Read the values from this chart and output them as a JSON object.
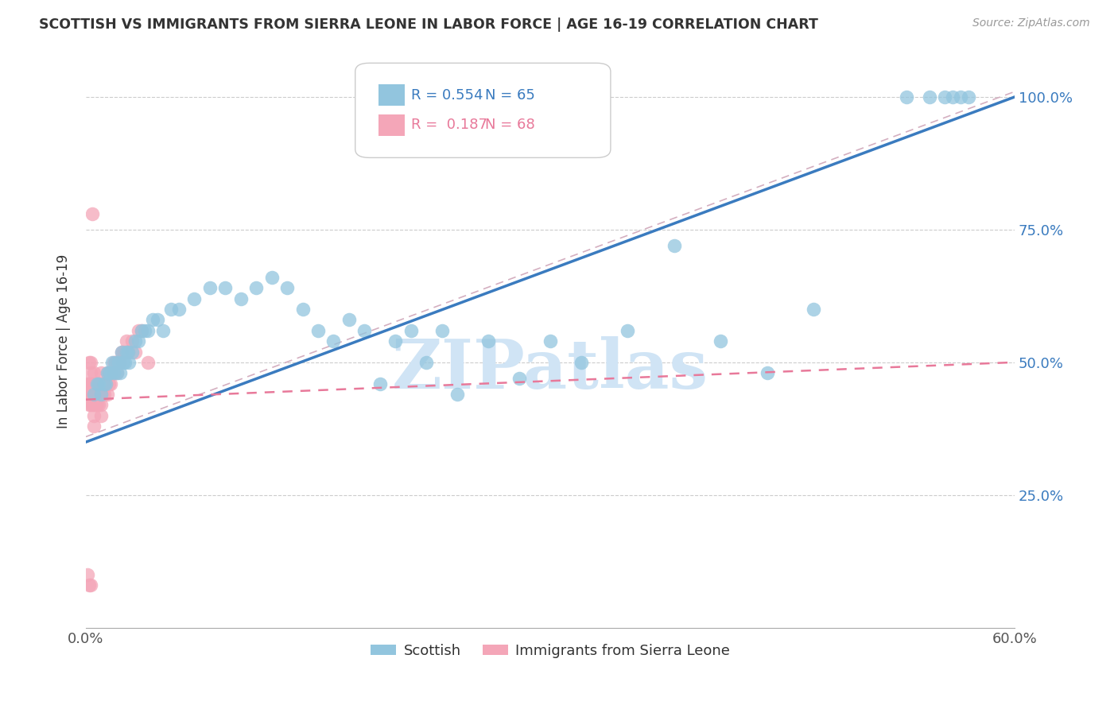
{
  "title": "SCOTTISH VS IMMIGRANTS FROM SIERRA LEONE IN LABOR FORCE | AGE 16-19 CORRELATION CHART",
  "source": "Source: ZipAtlas.com",
  "ylabel": "In Labor Force | Age 16-19",
  "xlim": [
    0.0,
    0.6
  ],
  "ylim": [
    0.0,
    1.08
  ],
  "yticks_right": [
    0.25,
    0.5,
    0.75,
    1.0
  ],
  "ytick_labels_right": [
    "25.0%",
    "50.0%",
    "75.0%",
    "100.0%"
  ],
  "grid_color": "#cccccc",
  "background_color": "#ffffff",
  "scottish_color": "#92c5de",
  "sierra_leone_color": "#f4a6b8",
  "scottish_R": 0.554,
  "scottish_N": 65,
  "sierra_leone_R": 0.187,
  "sierra_leone_N": 68,
  "legend_label_scottish": "Scottish",
  "legend_label_sierra": "Immigrants from Sierra Leone",
  "watermark": "ZIPatlas",
  "watermark_color": "#d0e4f5",
  "blue_line_color": "#3a7bbf",
  "pink_line_color": "#e8799a",
  "ref_line_color": "#d0b8c8",
  "scottish_x": [
    0.005,
    0.007,
    0.008,
    0.01,
    0.012,
    0.013,
    0.014,
    0.015,
    0.016,
    0.017,
    0.018,
    0.019,
    0.02,
    0.021,
    0.022,
    0.023,
    0.024,
    0.025,
    0.026,
    0.027,
    0.028,
    0.03,
    0.032,
    0.034,
    0.036,
    0.038,
    0.04,
    0.043,
    0.046,
    0.05,
    0.055,
    0.06,
    0.07,
    0.08,
    0.09,
    0.1,
    0.11,
    0.12,
    0.13,
    0.14,
    0.15,
    0.16,
    0.17,
    0.18,
    0.19,
    0.2,
    0.21,
    0.22,
    0.23,
    0.24,
    0.26,
    0.28,
    0.3,
    0.32,
    0.35,
    0.38,
    0.41,
    0.44,
    0.47,
    0.53,
    0.545,
    0.555,
    0.56,
    0.565,
    0.57
  ],
  "scottish_y": [
    0.44,
    0.46,
    0.46,
    0.44,
    0.46,
    0.46,
    0.48,
    0.48,
    0.48,
    0.5,
    0.48,
    0.5,
    0.48,
    0.5,
    0.48,
    0.52,
    0.5,
    0.5,
    0.52,
    0.52,
    0.5,
    0.52,
    0.54,
    0.54,
    0.56,
    0.56,
    0.56,
    0.58,
    0.58,
    0.56,
    0.6,
    0.6,
    0.62,
    0.64,
    0.64,
    0.62,
    0.64,
    0.66,
    0.64,
    0.6,
    0.56,
    0.54,
    0.58,
    0.56,
    0.46,
    0.54,
    0.56,
    0.5,
    0.56,
    0.44,
    0.54,
    0.47,
    0.54,
    0.5,
    0.56,
    0.72,
    0.54,
    0.48,
    0.6,
    1.0,
    1.0,
    1.0,
    1.0,
    1.0,
    1.0
  ],
  "sierra_leone_x": [
    0.001,
    0.001,
    0.002,
    0.002,
    0.002,
    0.003,
    0.003,
    0.003,
    0.003,
    0.004,
    0.004,
    0.004,
    0.005,
    0.005,
    0.005,
    0.005,
    0.005,
    0.006,
    0.006,
    0.007,
    0.007,
    0.007,
    0.008,
    0.008,
    0.008,
    0.009,
    0.009,
    0.01,
    0.01,
    0.01,
    0.01,
    0.01,
    0.011,
    0.011,
    0.012,
    0.012,
    0.013,
    0.014,
    0.014,
    0.015,
    0.015,
    0.016,
    0.016,
    0.017,
    0.018,
    0.018,
    0.019,
    0.02,
    0.02,
    0.021,
    0.022,
    0.023,
    0.024,
    0.025,
    0.026,
    0.027,
    0.03,
    0.032,
    0.034,
    0.036,
    0.04,
    0.004,
    0.002,
    0.005,
    0.003,
    0.001,
    0.002,
    0.003
  ],
  "sierra_leone_y": [
    0.44,
    0.46,
    0.42,
    0.44,
    0.46,
    0.42,
    0.44,
    0.46,
    0.48,
    0.42,
    0.44,
    0.46,
    0.38,
    0.4,
    0.42,
    0.44,
    0.46,
    0.42,
    0.44,
    0.42,
    0.44,
    0.46,
    0.42,
    0.44,
    0.46,
    0.44,
    0.46,
    0.4,
    0.42,
    0.44,
    0.46,
    0.48,
    0.44,
    0.46,
    0.44,
    0.46,
    0.46,
    0.44,
    0.48,
    0.46,
    0.48,
    0.46,
    0.48,
    0.48,
    0.48,
    0.5,
    0.5,
    0.48,
    0.5,
    0.5,
    0.5,
    0.52,
    0.52,
    0.52,
    0.54,
    0.52,
    0.54,
    0.52,
    0.56,
    0.56,
    0.5,
    0.78,
    0.5,
    0.48,
    0.5,
    0.1,
    0.08,
    0.08
  ]
}
